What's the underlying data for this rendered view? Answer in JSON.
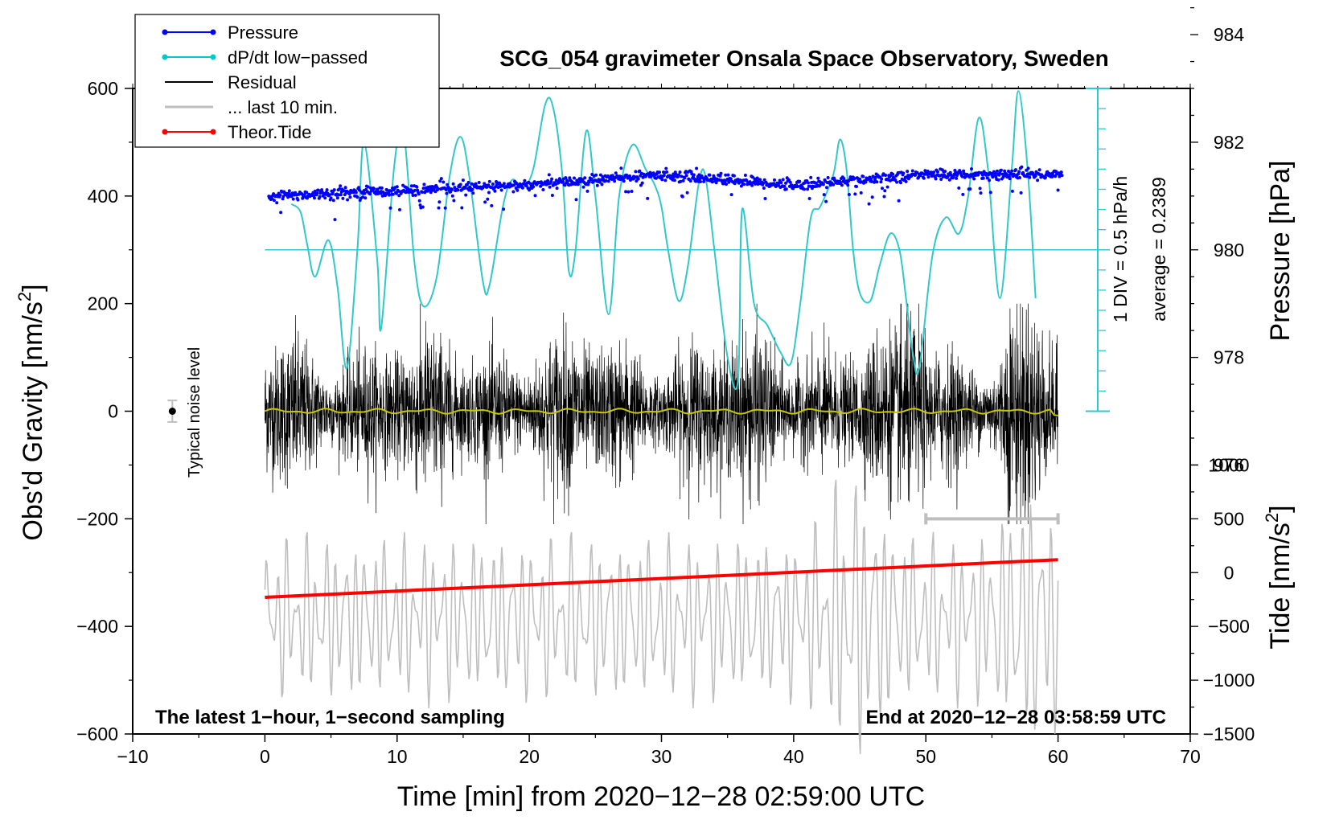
{
  "chart_data": {
    "type": "line",
    "title": "SCG_054 gravimeter Onsala Space Observatory, Sweden",
    "subtitle_left": "The latest 1−hour, 1−second sampling",
    "subtitle_right": "End at 2020−12−28 03:58:59 UTC",
    "xlabel": "Time [min] from 2020−12−28 02:59:00 UTC",
    "ylabel_left": "Obs'd Gravity [nm/s",
    "ylabel_left_sup": "2",
    "ylabel_left_close": "]",
    "ylabel_right_pressure": "Pressure [hPa]",
    "ylabel_right_tide": "Tide [nm/s",
    "ylabel_right_tide_sup": "2",
    "ylabel_right_tide_close": "]",
    "xlim": [
      -10,
      70
    ],
    "ylim": [
      -600,
      600
    ],
    "pressure_range": [
      974,
      986
    ],
    "tide_range": [
      -1500,
      1500
    ],
    "x_ticks": [
      -10,
      0,
      10,
      20,
      30,
      40,
      50,
      60,
      70
    ],
    "x_tick_labels": [
      "−10",
      "0",
      "10",
      "20",
      "30",
      "40",
      "50",
      "60",
      "70"
    ],
    "y_ticks": [
      -600,
      -400,
      -200,
      0,
      200,
      400,
      600
    ],
    "y_tick_labels": [
      "−600",
      "−400",
      "−200",
      "0",
      "200",
      "400",
      "600"
    ],
    "pressure_ticks": [
      976,
      978,
      980,
      982,
      984
    ],
    "pressure_tick_labels": [
      "976",
      "978",
      "980",
      "982",
      "984"
    ],
    "tide_ticks": [
      -1500,
      -1000,
      -500,
      0,
      500,
      1000
    ],
    "tide_tick_labels": [
      "−1500",
      "−1000",
      "−500",
      "0",
      "500",
      "1000"
    ],
    "dpdt_scale_label": "1 DIV = 0.5 hPa/h",
    "dpdt_average_label": "average = 0.2389",
    "noise_label": "Typical noise level",
    "legend": [
      {
        "label": "Pressure",
        "color": "#0000ff",
        "marker": true
      },
      {
        "label": "dP/dt low−passed",
        "color": "#00c8c8",
        "marker": true
      },
      {
        "label": "Residual",
        "color": "#000000",
        "marker": false
      },
      {
        "label": "... last 10 min.",
        "color": "#bebebe",
        "marker": false
      },
      {
        "label": "Theor.Tide",
        "color": "#ff0000",
        "marker": true
      }
    ],
    "colors": {
      "pressure": "#0000ff",
      "dpdt": "#30c8c8",
      "residual": "#000000",
      "residual_avg": "#c8c800",
      "last10": "#bebebe",
      "tide": "#ff0000"
    },
    "series": [
      {
        "name": "Pressure",
        "unit": "hPa",
        "points": [
          [
            0,
            981.0
          ],
          [
            10,
            981.1
          ],
          [
            20,
            981.2
          ],
          [
            30,
            981.4
          ],
          [
            40,
            981.2
          ],
          [
            50,
            981.4
          ],
          [
            60,
            981.4
          ]
        ]
      },
      {
        "name": "dP/dt low-passed",
        "unit": "nm/s2 axis",
        "points": [
          [
            2.0,
            385
          ],
          [
            2.7,
            370
          ],
          [
            3.2,
            310
          ],
          [
            3.8,
            250
          ],
          [
            4.8,
            318
          ],
          [
            5.5,
            230
          ],
          [
            6.2,
            80
          ],
          [
            7.0,
            300
          ],
          [
            7.5,
            500
          ],
          [
            8.5,
            280
          ],
          [
            8.8,
            155
          ],
          [
            9.8,
            460
          ],
          [
            10.5,
            520
          ],
          [
            11.3,
            280
          ],
          [
            12.0,
            195
          ],
          [
            13.0,
            250
          ],
          [
            14.0,
            440
          ],
          [
            14.8,
            510
          ],
          [
            15.5,
            430
          ],
          [
            16.5,
            240
          ],
          [
            17.0,
            235
          ],
          [
            18.0,
            380
          ],
          [
            18.7,
            430
          ],
          [
            19.5,
            415
          ],
          [
            20.3,
            450
          ],
          [
            21.2,
            570
          ],
          [
            21.8,
            565
          ],
          [
            22.5,
            440
          ],
          [
            23.0,
            260
          ],
          [
            23.5,
            300
          ],
          [
            24.3,
            520
          ],
          [
            25.0,
            400
          ],
          [
            26.0,
            180
          ],
          [
            26.8,
            400
          ],
          [
            27.8,
            495
          ],
          [
            28.8,
            450
          ],
          [
            29.5,
            420
          ],
          [
            30.0,
            380
          ],
          [
            30.5,
            300
          ],
          [
            31.3,
            205
          ],
          [
            32.0,
            270
          ],
          [
            32.8,
            420
          ],
          [
            33.3,
            440
          ],
          [
            34.0,
            300
          ],
          [
            35.0,
            100
          ],
          [
            35.8,
            60
          ],
          [
            36.1,
            375
          ],
          [
            37.0,
            200
          ],
          [
            38.0,
            160
          ],
          [
            39.0,
            110
          ],
          [
            39.8,
            90
          ],
          [
            40.5,
            200
          ],
          [
            41.3,
            360
          ],
          [
            42.0,
            380
          ],
          [
            43.0,
            440
          ],
          [
            43.5,
            505
          ],
          [
            44.0,
            450
          ],
          [
            44.5,
            300
          ],
          [
            45.0,
            220
          ],
          [
            45.8,
            205
          ],
          [
            46.5,
            270
          ],
          [
            47.3,
            330
          ],
          [
            48.0,
            300
          ],
          [
            48.5,
            210
          ],
          [
            49.0,
            110
          ],
          [
            49.5,
            80
          ],
          [
            50.5,
            290
          ],
          [
            51.5,
            360
          ],
          [
            52.5,
            330
          ],
          [
            53.2,
            400
          ],
          [
            54.0,
            545
          ],
          [
            54.7,
            450
          ],
          [
            55.6,
            210
          ],
          [
            56.5,
            450
          ],
          [
            57.0,
            595
          ],
          [
            57.7,
            450
          ],
          [
            58.3,
            210
          ]
        ]
      },
      {
        "name": "Theor.Tide",
        "unit": "nm/s2",
        "points": [
          [
            0,
            -230
          ],
          [
            60,
            120
          ]
        ]
      },
      {
        "name": "Residual",
        "unit": "nm/s2",
        "amplitude": 130,
        "range": [
          0,
          60
        ]
      },
      {
        "name": "... last 10 min.",
        "unit": "nm/s2",
        "range": [
          0,
          60
        ],
        "center": -385,
        "amplitude": 130
      }
    ],
    "noise_marker": {
      "x": -7,
      "y": 0,
      "error": 20
    },
    "last10_bar": {
      "x_start": 50,
      "x_end": 60,
      "y": -200
    }
  }
}
